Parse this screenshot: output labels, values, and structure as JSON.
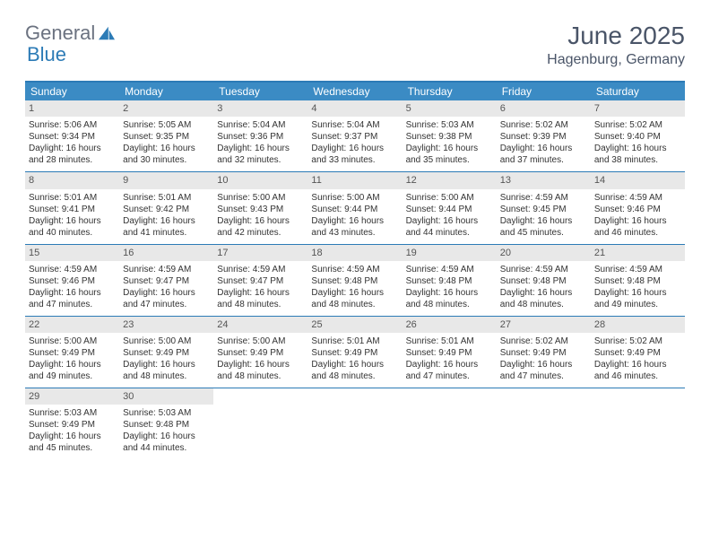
{
  "logo": {
    "part1": "General",
    "part2": "Blue"
  },
  "title": "June 2025",
  "location": "Hagenburg, Germany",
  "colors": {
    "accent": "#2c7bb6",
    "header_bg": "#3b8bc4",
    "daynum_bg": "#e8e8e8",
    "text": "#333333",
    "title_text": "#4a5568"
  },
  "weekdays": [
    "Sunday",
    "Monday",
    "Tuesday",
    "Wednesday",
    "Thursday",
    "Friday",
    "Saturday"
  ],
  "days": [
    {
      "n": 1,
      "sr": "5:06 AM",
      "ss": "9:34 PM",
      "dl": "16 hours and 28 minutes."
    },
    {
      "n": 2,
      "sr": "5:05 AM",
      "ss": "9:35 PM",
      "dl": "16 hours and 30 minutes."
    },
    {
      "n": 3,
      "sr": "5:04 AM",
      "ss": "9:36 PM",
      "dl": "16 hours and 32 minutes."
    },
    {
      "n": 4,
      "sr": "5:04 AM",
      "ss": "9:37 PM",
      "dl": "16 hours and 33 minutes."
    },
    {
      "n": 5,
      "sr": "5:03 AM",
      "ss": "9:38 PM",
      "dl": "16 hours and 35 minutes."
    },
    {
      "n": 6,
      "sr": "5:02 AM",
      "ss": "9:39 PM",
      "dl": "16 hours and 37 minutes."
    },
    {
      "n": 7,
      "sr": "5:02 AM",
      "ss": "9:40 PM",
      "dl": "16 hours and 38 minutes."
    },
    {
      "n": 8,
      "sr": "5:01 AM",
      "ss": "9:41 PM",
      "dl": "16 hours and 40 minutes."
    },
    {
      "n": 9,
      "sr": "5:01 AM",
      "ss": "9:42 PM",
      "dl": "16 hours and 41 minutes."
    },
    {
      "n": 10,
      "sr": "5:00 AM",
      "ss": "9:43 PM",
      "dl": "16 hours and 42 minutes."
    },
    {
      "n": 11,
      "sr": "5:00 AM",
      "ss": "9:44 PM",
      "dl": "16 hours and 43 minutes."
    },
    {
      "n": 12,
      "sr": "5:00 AM",
      "ss": "9:44 PM",
      "dl": "16 hours and 44 minutes."
    },
    {
      "n": 13,
      "sr": "4:59 AM",
      "ss": "9:45 PM",
      "dl": "16 hours and 45 minutes."
    },
    {
      "n": 14,
      "sr": "4:59 AM",
      "ss": "9:46 PM",
      "dl": "16 hours and 46 minutes."
    },
    {
      "n": 15,
      "sr": "4:59 AM",
      "ss": "9:46 PM",
      "dl": "16 hours and 47 minutes."
    },
    {
      "n": 16,
      "sr": "4:59 AM",
      "ss": "9:47 PM",
      "dl": "16 hours and 47 minutes."
    },
    {
      "n": 17,
      "sr": "4:59 AM",
      "ss": "9:47 PM",
      "dl": "16 hours and 48 minutes."
    },
    {
      "n": 18,
      "sr": "4:59 AM",
      "ss": "9:48 PM",
      "dl": "16 hours and 48 minutes."
    },
    {
      "n": 19,
      "sr": "4:59 AM",
      "ss": "9:48 PM",
      "dl": "16 hours and 48 minutes."
    },
    {
      "n": 20,
      "sr": "4:59 AM",
      "ss": "9:48 PM",
      "dl": "16 hours and 48 minutes."
    },
    {
      "n": 21,
      "sr": "4:59 AM",
      "ss": "9:48 PM",
      "dl": "16 hours and 49 minutes."
    },
    {
      "n": 22,
      "sr": "5:00 AM",
      "ss": "9:49 PM",
      "dl": "16 hours and 49 minutes."
    },
    {
      "n": 23,
      "sr": "5:00 AM",
      "ss": "9:49 PM",
      "dl": "16 hours and 48 minutes."
    },
    {
      "n": 24,
      "sr": "5:00 AM",
      "ss": "9:49 PM",
      "dl": "16 hours and 48 minutes."
    },
    {
      "n": 25,
      "sr": "5:01 AM",
      "ss": "9:49 PM",
      "dl": "16 hours and 48 minutes."
    },
    {
      "n": 26,
      "sr": "5:01 AM",
      "ss": "9:49 PM",
      "dl": "16 hours and 47 minutes."
    },
    {
      "n": 27,
      "sr": "5:02 AM",
      "ss": "9:49 PM",
      "dl": "16 hours and 47 minutes."
    },
    {
      "n": 28,
      "sr": "5:02 AM",
      "ss": "9:49 PM",
      "dl": "16 hours and 46 minutes."
    },
    {
      "n": 29,
      "sr": "5:03 AM",
      "ss": "9:49 PM",
      "dl": "16 hours and 45 minutes."
    },
    {
      "n": 30,
      "sr": "5:03 AM",
      "ss": "9:48 PM",
      "dl": "16 hours and 44 minutes."
    }
  ],
  "labels": {
    "sunrise": "Sunrise:",
    "sunset": "Sunset:",
    "daylight": "Daylight:"
  },
  "layout": {
    "first_day_col": 0,
    "total_days": 30,
    "cols": 7
  }
}
